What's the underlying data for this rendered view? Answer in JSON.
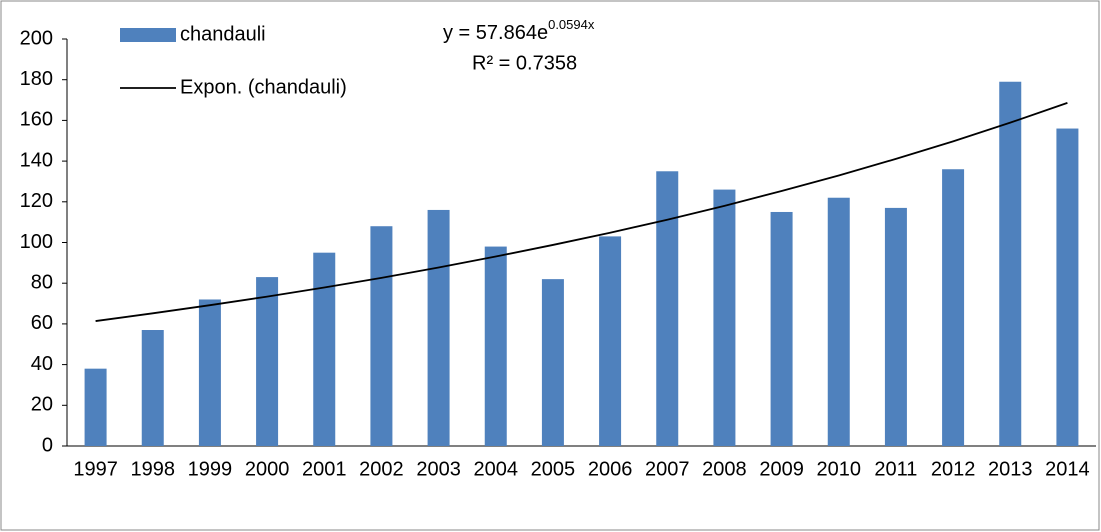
{
  "chart_data": {
    "type": "bar",
    "categories": [
      "1997",
      "1998",
      "1999",
      "2000",
      "2001",
      "2002",
      "2003",
      "2004",
      "2005",
      "2006",
      "2007",
      "2008",
      "2009",
      "2010",
      "2011",
      "2012",
      "2013",
      "2014"
    ],
    "series": [
      {
        "name": "chandauli",
        "type": "bar",
        "color": "#4f81bd",
        "values": [
          38,
          57,
          72,
          83,
          95,
          108,
          116,
          98,
          82,
          103,
          135,
          126,
          115,
          122,
          117,
          136,
          179,
          156
        ]
      },
      {
        "name": "Expon. (chandauli)",
        "type": "line",
        "color": "#000000",
        "values": [
          61.4,
          65.2,
          69.2,
          73.4,
          77.9,
          82.6,
          87.7,
          93.1,
          98.8,
          104.8,
          111.2,
          118.0,
          125.3,
          132.9,
          141.1,
          149.7,
          158.9,
          168.6
        ]
      }
    ],
    "equation": {
      "base": "y = 57.864e",
      "exponent": "0.0594x"
    },
    "r_squared": "R² = 0.7358",
    "ylim": [
      0,
      200
    ],
    "yticks": [
      0,
      20,
      40,
      60,
      80,
      100,
      120,
      140,
      160,
      180,
      200
    ],
    "grid": false,
    "legend": "top-left"
  }
}
